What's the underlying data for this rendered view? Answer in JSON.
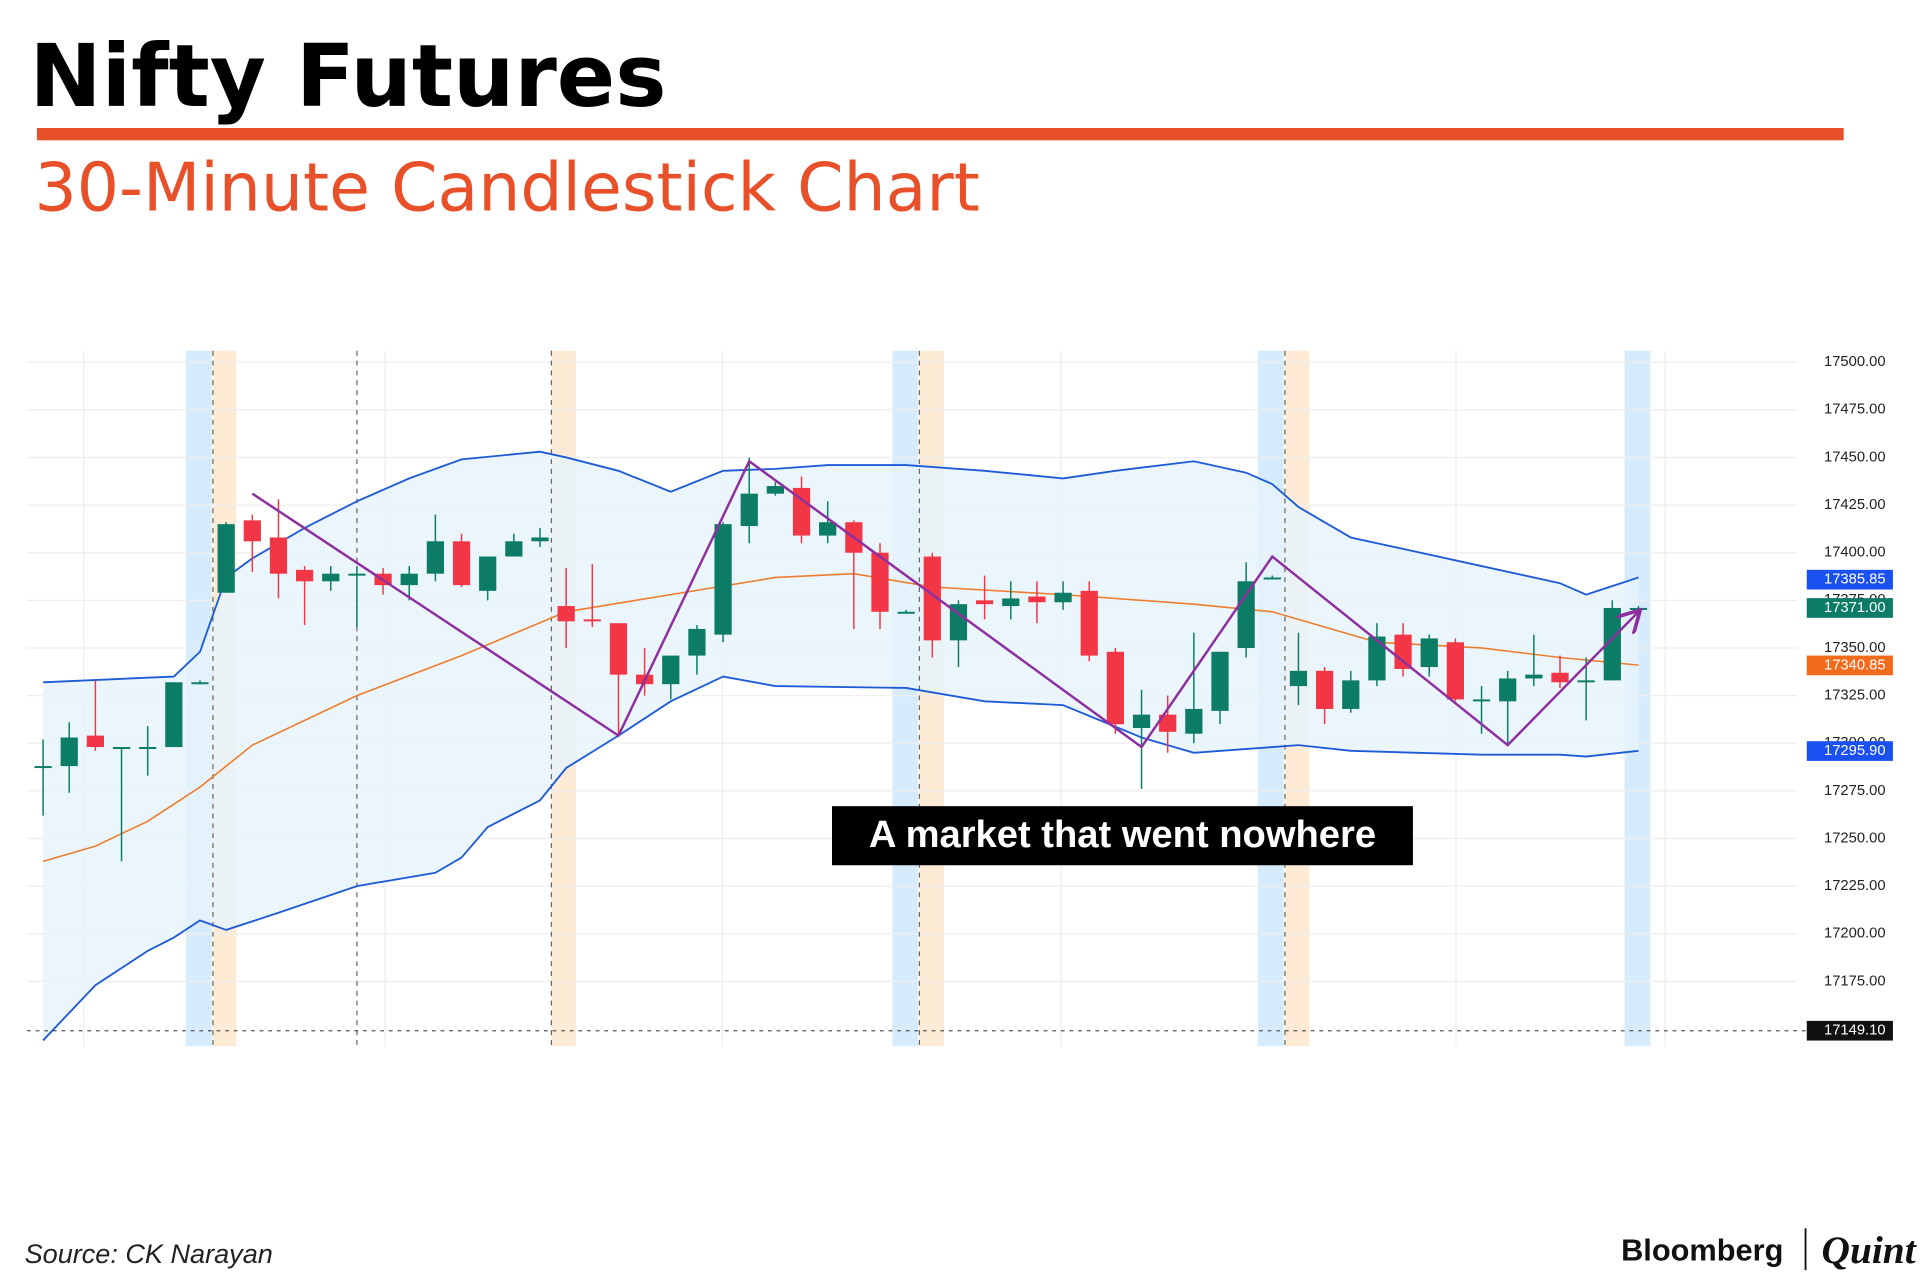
{
  "chart_data": {
    "type": "candlestick",
    "title": "Nifty Futures",
    "subtitle": "30-Minute Candlestick Chart",
    "annotation": "A market that went nowhere",
    "source": "Source: CK Narayan",
    "logo": [
      "Bloomberg",
      "Quint"
    ],
    "x": [
      1,
      2,
      3,
      4,
      5,
      6,
      7,
      8,
      9,
      10,
      11,
      12,
      13,
      14,
      15,
      16,
      17,
      18,
      19,
      20,
      21,
      22,
      23,
      24,
      25,
      26,
      27,
      28,
      29,
      30,
      31,
      32,
      33,
      34,
      35,
      36,
      37,
      38,
      39,
      40,
      41,
      42,
      43,
      44,
      45,
      46,
      47,
      48,
      49,
      50,
      51,
      52,
      53,
      54,
      55,
      56,
      57,
      58,
      59,
      60,
      61,
      62
    ],
    "open": [
      17288,
      17288,
      17304,
      17297,
      17297,
      17298,
      17332,
      17379,
      17417,
      17408,
      17391,
      17385,
      17389,
      17389,
      17383,
      17389,
      17406,
      17380,
      17398,
      17406,
      17372,
      17365,
      17363,
      17336,
      17331,
      17346,
      17357,
      17414,
      17431,
      17434,
      17409,
      17416,
      17400,
      17369,
      17398,
      17354,
      17375,
      17372,
      17377,
      17374,
      17380,
      17348,
      17308,
      17315,
      17305,
      17317,
      17350,
      17387,
      17330,
      17338,
      17318,
      17333,
      17357,
      17340,
      17353,
      17323,
      17322,
      17334,
      17337,
      17333,
      17333,
      17371
    ],
    "high": [
      17302,
      17311,
      17333,
      17298,
      17309,
      17332,
      17333,
      17416,
      17420,
      17428,
      17393,
      17393,
      17393,
      17392,
      17393,
      17420,
      17410,
      17398,
      17410,
      17413,
      17392,
      17394,
      17363,
      17350,
      17346,
      17362,
      17416,
      17450,
      17437,
      17440,
      17427,
      17417,
      17405,
      17370,
      17400,
      17375,
      17388,
      17385,
      17385,
      17385,
      17385,
      17350,
      17328,
      17325,
      17358,
      17348,
      17395,
      17388,
      17358,
      17340,
      17338,
      17363,
      17363,
      17357,
      17355,
      17330,
      17338,
      17357,
      17346,
      17345,
      17375,
      17372
    ],
    "low": [
      17262,
      17274,
      17296,
      17238,
      17283,
      17298,
      17331,
      17379,
      17390,
      17376,
      17362,
      17380,
      17361,
      17378,
      17375,
      17385,
      17382,
      17375,
      17398,
      17403,
      17350,
      17361,
      17305,
      17325,
      17323,
      17336,
      17353,
      17405,
      17430,
      17405,
      17405,
      17360,
      17360,
      17368,
      17345,
      17340,
      17365,
      17365,
      17363,
      17370,
      17343,
      17305,
      17276,
      17295,
      17300,
      17310,
      17345,
      17386,
      17320,
      17310,
      17316,
      17330,
      17335,
      17335,
      17322,
      17305,
      17300,
      17330,
      17329,
      17312,
      17333,
      17370
    ],
    "close": [
      17288,
      17303,
      17298,
      17298,
      17298,
      17332,
      17332,
      17415,
      17406,
      17389,
      17385,
      17389,
      17389,
      17383,
      17389,
      17406,
      17383,
      17398,
      17406,
      17408,
      17364,
      17364,
      17336,
      17331,
      17346,
      17360,
      17415,
      17431,
      17435,
      17409,
      17416,
      17400,
      17369,
      17369,
      17354,
      17373,
      17373,
      17376,
      17374,
      17379,
      17346,
      17310,
      17315,
      17306,
      17318,
      17348,
      17385,
      17387,
      17338,
      17318,
      17333,
      17356,
      17339,
      17355,
      17323,
      17323,
      17334,
      17336,
      17332,
      17333,
      17371,
      17371
    ],
    "up_color": "#0c7c66",
    "down_color": "#f23645",
    "bollinger_upper": {
      "color": "#1e5bd8",
      "x": [
        1,
        6,
        7,
        8,
        9,
        11,
        13,
        15,
        17,
        20,
        21,
        23,
        25,
        27,
        29,
        31,
        34,
        37,
        40,
        42,
        45,
        47,
        48,
        49,
        51,
        53,
        56,
        59,
        60,
        62
      ],
      "values": [
        17332,
        17335,
        17348,
        17387,
        17397,
        17413,
        17427,
        17439,
        17449,
        17453,
        17450,
        17443,
        17432,
        17443,
        17444,
        17446,
        17446,
        17443,
        17439,
        17443,
        17448,
        17442,
        17436,
        17424,
        17408,
        17402,
        17393,
        17384,
        17378,
        17387
      ]
    },
    "bollinger_lower": {
      "color": "#1e5bd8",
      "x": [
        1,
        3,
        5,
        6,
        7,
        8,
        10,
        13,
        16,
        17,
        18,
        20,
        21,
        23,
        25,
        27,
        29,
        34,
        37,
        40,
        43,
        45,
        48,
        49,
        51,
        56,
        59,
        60,
        62
      ],
      "values": [
        17144,
        17173,
        17191,
        17198,
        17207,
        17202,
        17211,
        17225,
        17232,
        17240,
        17256,
        17270,
        17287,
        17304,
        17322,
        17335,
        17330,
        17329,
        17322,
        17320,
        17303,
        17295,
        17298,
        17299,
        17296,
        17294,
        17294,
        17293,
        17296
      ]
    },
    "band_fill": "#e6f3fb",
    "moving_average": {
      "color": "#ef7d2d",
      "x": [
        1,
        3,
        5,
        7,
        9,
        13,
        17,
        21,
        25,
        29,
        32,
        35,
        40,
        45,
        48,
        50,
        52,
        56,
        59,
        62
      ],
      "values": [
        17238,
        17246,
        17259,
        17277,
        17299,
        17325,
        17346,
        17369,
        17378,
        17387,
        17389,
        17382,
        17378,
        17373,
        17369,
        17361,
        17353,
        17350,
        17345,
        17341
      ]
    },
    "zigzag": {
      "color": "#8e2fa0",
      "x": [
        9,
        23,
        28,
        43,
        48,
        57,
        62
      ],
      "values": [
        17431,
        17304,
        17448,
        17298,
        17398,
        17299,
        17369
      ]
    },
    "ylim": [
      17141,
      17506
    ],
    "yticks": [
      {
        "value": 17500,
        "label": "17500.00"
      },
      {
        "value": 17475,
        "label": "17475.00"
      },
      {
        "value": 17450,
        "label": "17450.00"
      },
      {
        "value": 17425,
        "label": "17425.00"
      },
      {
        "value": 17400,
        "label": "17400.00"
      },
      {
        "value": 17375,
        "label": "17375.00"
      },
      {
        "value": 17350,
        "label": "17350.00"
      },
      {
        "value": 17325,
        "label": "17325.00"
      },
      {
        "value": 17300,
        "label": "17300.00"
      },
      {
        "value": 17275,
        "label": "17275.00"
      },
      {
        "value": 17250,
        "label": "17250.00"
      },
      {
        "value": 17225,
        "label": "17225.00"
      },
      {
        "value": 17200,
        "label": "17200.00"
      },
      {
        "value": 17175,
        "label": "17175.00"
      }
    ],
    "grid": true,
    "price_tags": [
      {
        "value": 17385.85,
        "label": "17385.85",
        "color": "#1a4ff0"
      },
      {
        "value": 17371,
        "label": "17371.00",
        "color": "#0c7c66"
      },
      {
        "value": 17340.85,
        "label": "17340.85",
        "color": "#f26b1d"
      },
      {
        "value": 17295.9,
        "label": "17295.90",
        "color": "#1a4ff0"
      },
      {
        "value": 17149.1,
        "label": "17149.10",
        "color": "#111111",
        "line": true
      }
    ]
  }
}
